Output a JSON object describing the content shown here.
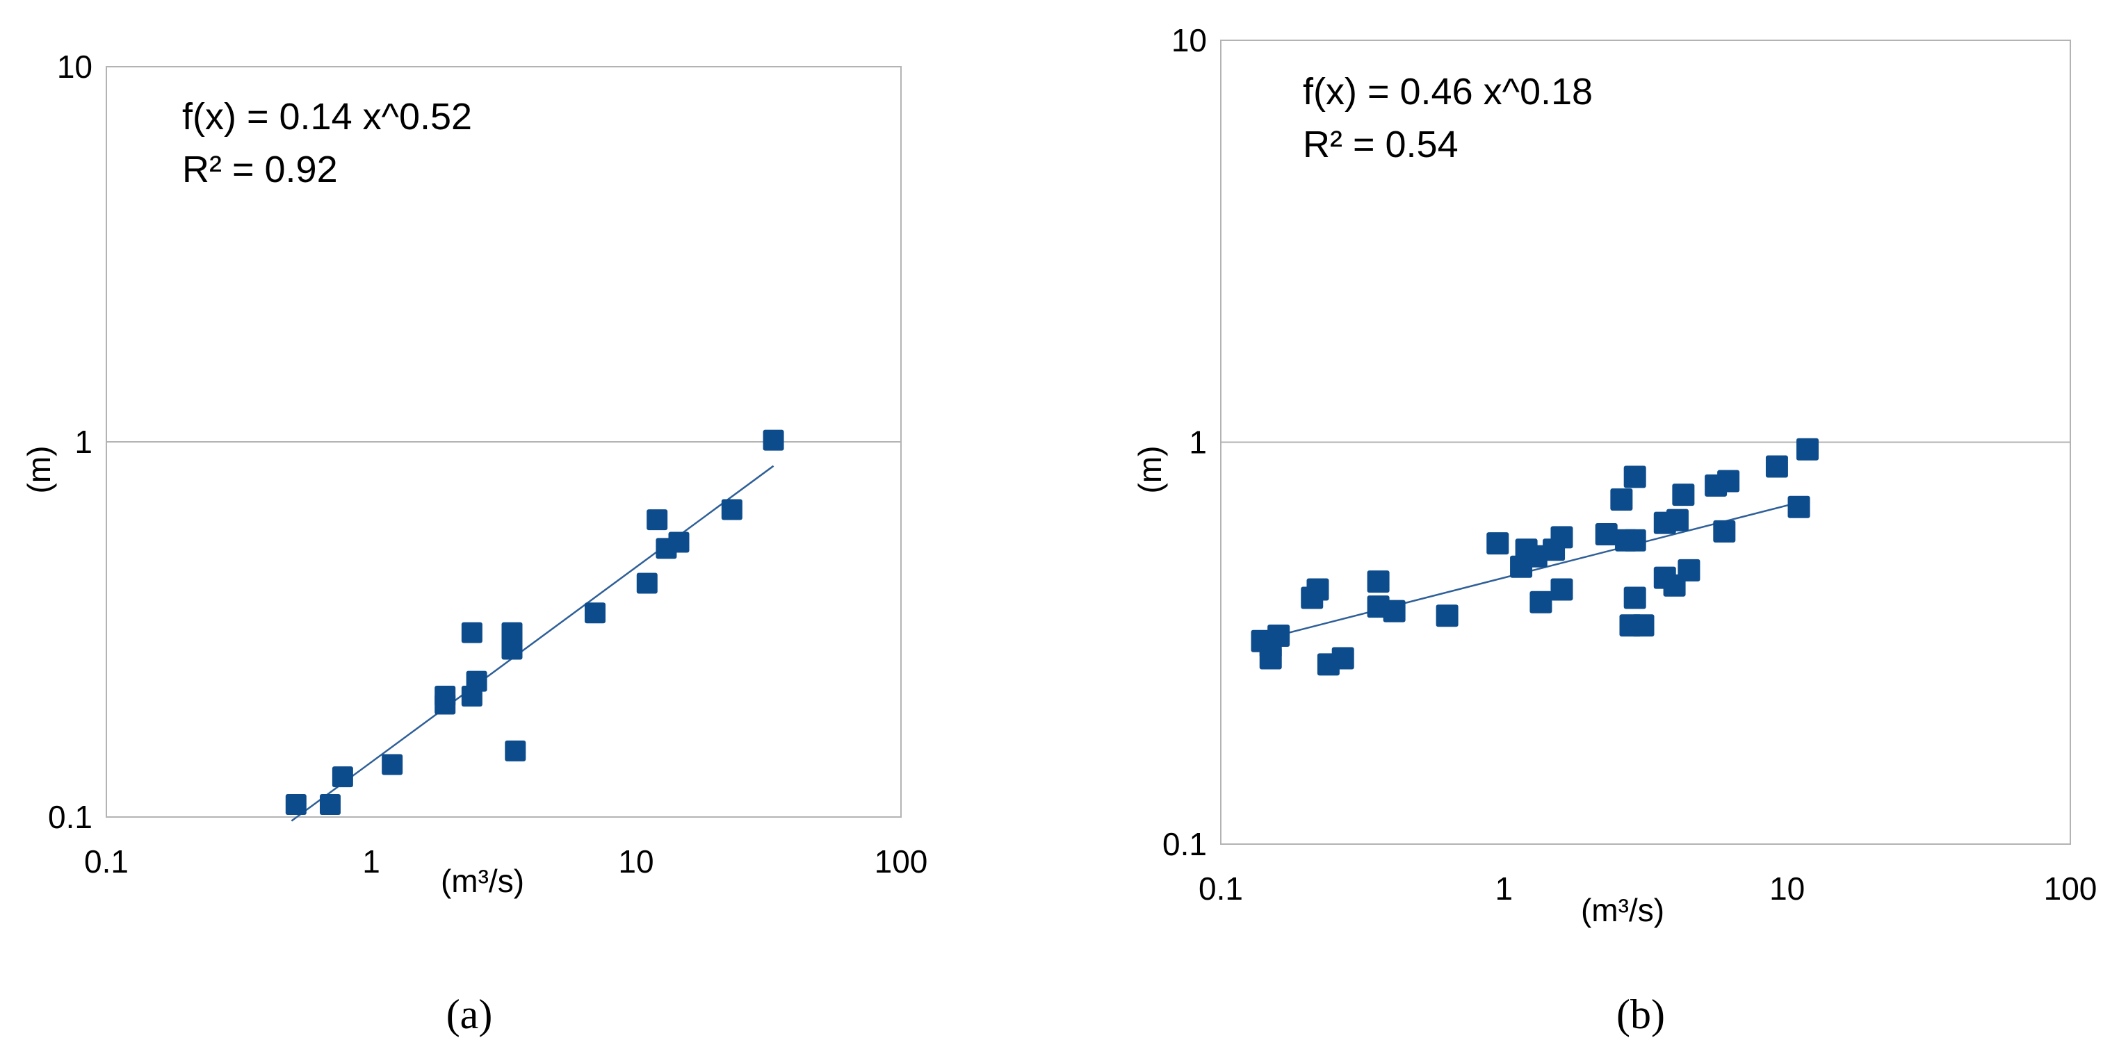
{
  "chart_data": [
    {
      "type": "scatter",
      "panel_label": "(a)",
      "xscale": "log",
      "yscale": "log",
      "xlim": [
        0.1,
        100
      ],
      "ylim": [
        0.1,
        10
      ],
      "xticks": [
        "0.1",
        "1",
        "10",
        "100"
      ],
      "yticks": [
        "0.1",
        "1",
        "10"
      ],
      "xlabel": "(m³/s)",
      "ylabel": "(m)",
      "equation": "f(x) = 0.14 x^0.52",
      "r2": "R² = 0.92",
      "trendline": {
        "a": 0.14,
        "b": 0.52,
        "x_from": 0.5,
        "x_to": 33
      },
      "marker_color": "#0d4c8c",
      "line_color": "#2e5f98",
      "points": [
        {
          "x": 0.52,
          "y": 0.108
        },
        {
          "x": 0.7,
          "y": 0.108
        },
        {
          "x": 0.78,
          "y": 0.128
        },
        {
          "x": 1.2,
          "y": 0.138
        },
        {
          "x": 1.9,
          "y": 0.2
        },
        {
          "x": 1.9,
          "y": 0.21
        },
        {
          "x": 2.4,
          "y": 0.21
        },
        {
          "x": 2.5,
          "y": 0.23
        },
        {
          "x": 2.4,
          "y": 0.31
        },
        {
          "x": 3.4,
          "y": 0.28
        },
        {
          "x": 3.4,
          "y": 0.31
        },
        {
          "x": 3.5,
          "y": 0.15
        },
        {
          "x": 7.0,
          "y": 0.35
        },
        {
          "x": 11,
          "y": 0.42
        },
        {
          "x": 12,
          "y": 0.62
        },
        {
          "x": 13,
          "y": 0.52
        },
        {
          "x": 14.5,
          "y": 0.54
        },
        {
          "x": 23,
          "y": 0.66
        },
        {
          "x": 33,
          "y": 1.01
        }
      ]
    },
    {
      "type": "scatter",
      "panel_label": "(b)",
      "xscale": "log",
      "yscale": "log",
      "xlim": [
        0.1,
        100
      ],
      "ylim": [
        0.1,
        10
      ],
      "xticks": [
        "0.1",
        "1",
        "10",
        "100"
      ],
      "yticks": [
        "0.1",
        "1",
        "10"
      ],
      "xlabel": "(m³/s)",
      "ylabel": "(m)",
      "equation": "f(x) = 0.46 x^0.18",
      "r2": "R² = 0.54",
      "trendline": {
        "a": 0.46,
        "b": 0.18,
        "x_from": 0.14,
        "x_to": 11
      },
      "marker_color": "#0d4c8c",
      "line_color": "#2e5f98",
      "points": [
        {
          "x": 0.14,
          "y": 0.32
        },
        {
          "x": 0.15,
          "y": 0.29
        },
        {
          "x": 0.15,
          "y": 0.31
        },
        {
          "x": 0.16,
          "y": 0.33
        },
        {
          "x": 0.21,
          "y": 0.41
        },
        {
          "x": 0.22,
          "y": 0.43
        },
        {
          "x": 0.24,
          "y": 0.28
        },
        {
          "x": 0.27,
          "y": 0.29
        },
        {
          "x": 0.36,
          "y": 0.39
        },
        {
          "x": 0.36,
          "y": 0.45
        },
        {
          "x": 0.41,
          "y": 0.38
        },
        {
          "x": 0.63,
          "y": 0.37
        },
        {
          "x": 0.95,
          "y": 0.56
        },
        {
          "x": 1.15,
          "y": 0.49
        },
        {
          "x": 1.2,
          "y": 0.54
        },
        {
          "x": 1.3,
          "y": 0.52
        },
        {
          "x": 1.35,
          "y": 0.4
        },
        {
          "x": 1.5,
          "y": 0.54
        },
        {
          "x": 1.6,
          "y": 0.58
        },
        {
          "x": 1.6,
          "y": 0.43
        },
        {
          "x": 2.3,
          "y": 0.59
        },
        {
          "x": 2.6,
          "y": 0.72
        },
        {
          "x": 2.7,
          "y": 0.57
        },
        {
          "x": 2.8,
          "y": 0.35
        },
        {
          "x": 2.9,
          "y": 0.41
        },
        {
          "x": 2.9,
          "y": 0.57
        },
        {
          "x": 2.9,
          "y": 0.82
        },
        {
          "x": 3.1,
          "y": 0.35
        },
        {
          "x": 3.7,
          "y": 0.63
        },
        {
          "x": 3.7,
          "y": 0.46
        },
        {
          "x": 4.0,
          "y": 0.44
        },
        {
          "x": 4.1,
          "y": 0.64
        },
        {
          "x": 4.3,
          "y": 0.74
        },
        {
          "x": 4.5,
          "y": 0.48
        },
        {
          "x": 5.6,
          "y": 0.78
        },
        {
          "x": 6.0,
          "y": 0.6
        },
        {
          "x": 6.2,
          "y": 0.8
        },
        {
          "x": 9.2,
          "y": 0.87
        },
        {
          "x": 11,
          "y": 0.69
        },
        {
          "x": 11.8,
          "y": 0.96
        }
      ]
    }
  ]
}
